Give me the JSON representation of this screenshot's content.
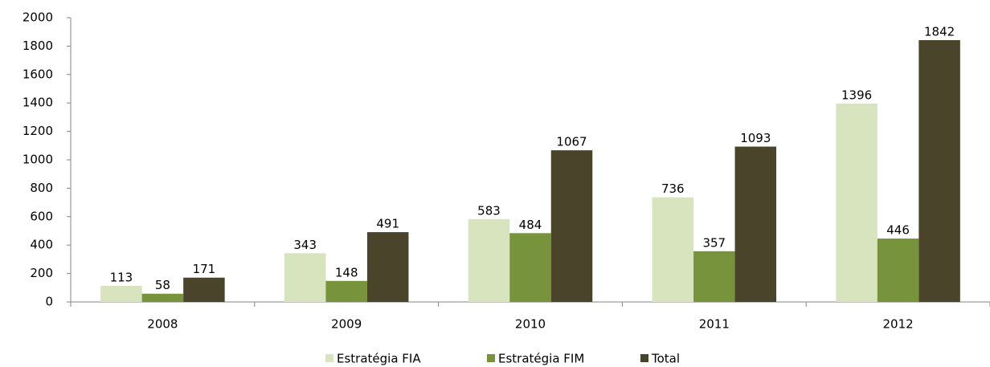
{
  "chart_data": {
    "type": "bar",
    "categories": [
      "2008",
      "2009",
      "2010",
      "2011",
      "2012"
    ],
    "series": [
      {
        "name": "Estratégia FIA",
        "color": "#d7e4bd",
        "values": [
          113,
          343,
          583,
          736,
          1396
        ]
      },
      {
        "name": "Estratégia FIM",
        "color": "#77933c",
        "values": [
          58,
          148,
          484,
          357,
          446
        ]
      },
      {
        "name": "Total",
        "color": "#4a452a",
        "values": [
          171,
          491,
          1067,
          1093,
          1842
        ]
      }
    ],
    "ylim": [
      0,
      2000
    ],
    "yticks": [
      0,
      200,
      400,
      600,
      800,
      1000,
      1200,
      1400,
      1600,
      1800,
      2000
    ],
    "grid": false,
    "legend": "bottom"
  }
}
